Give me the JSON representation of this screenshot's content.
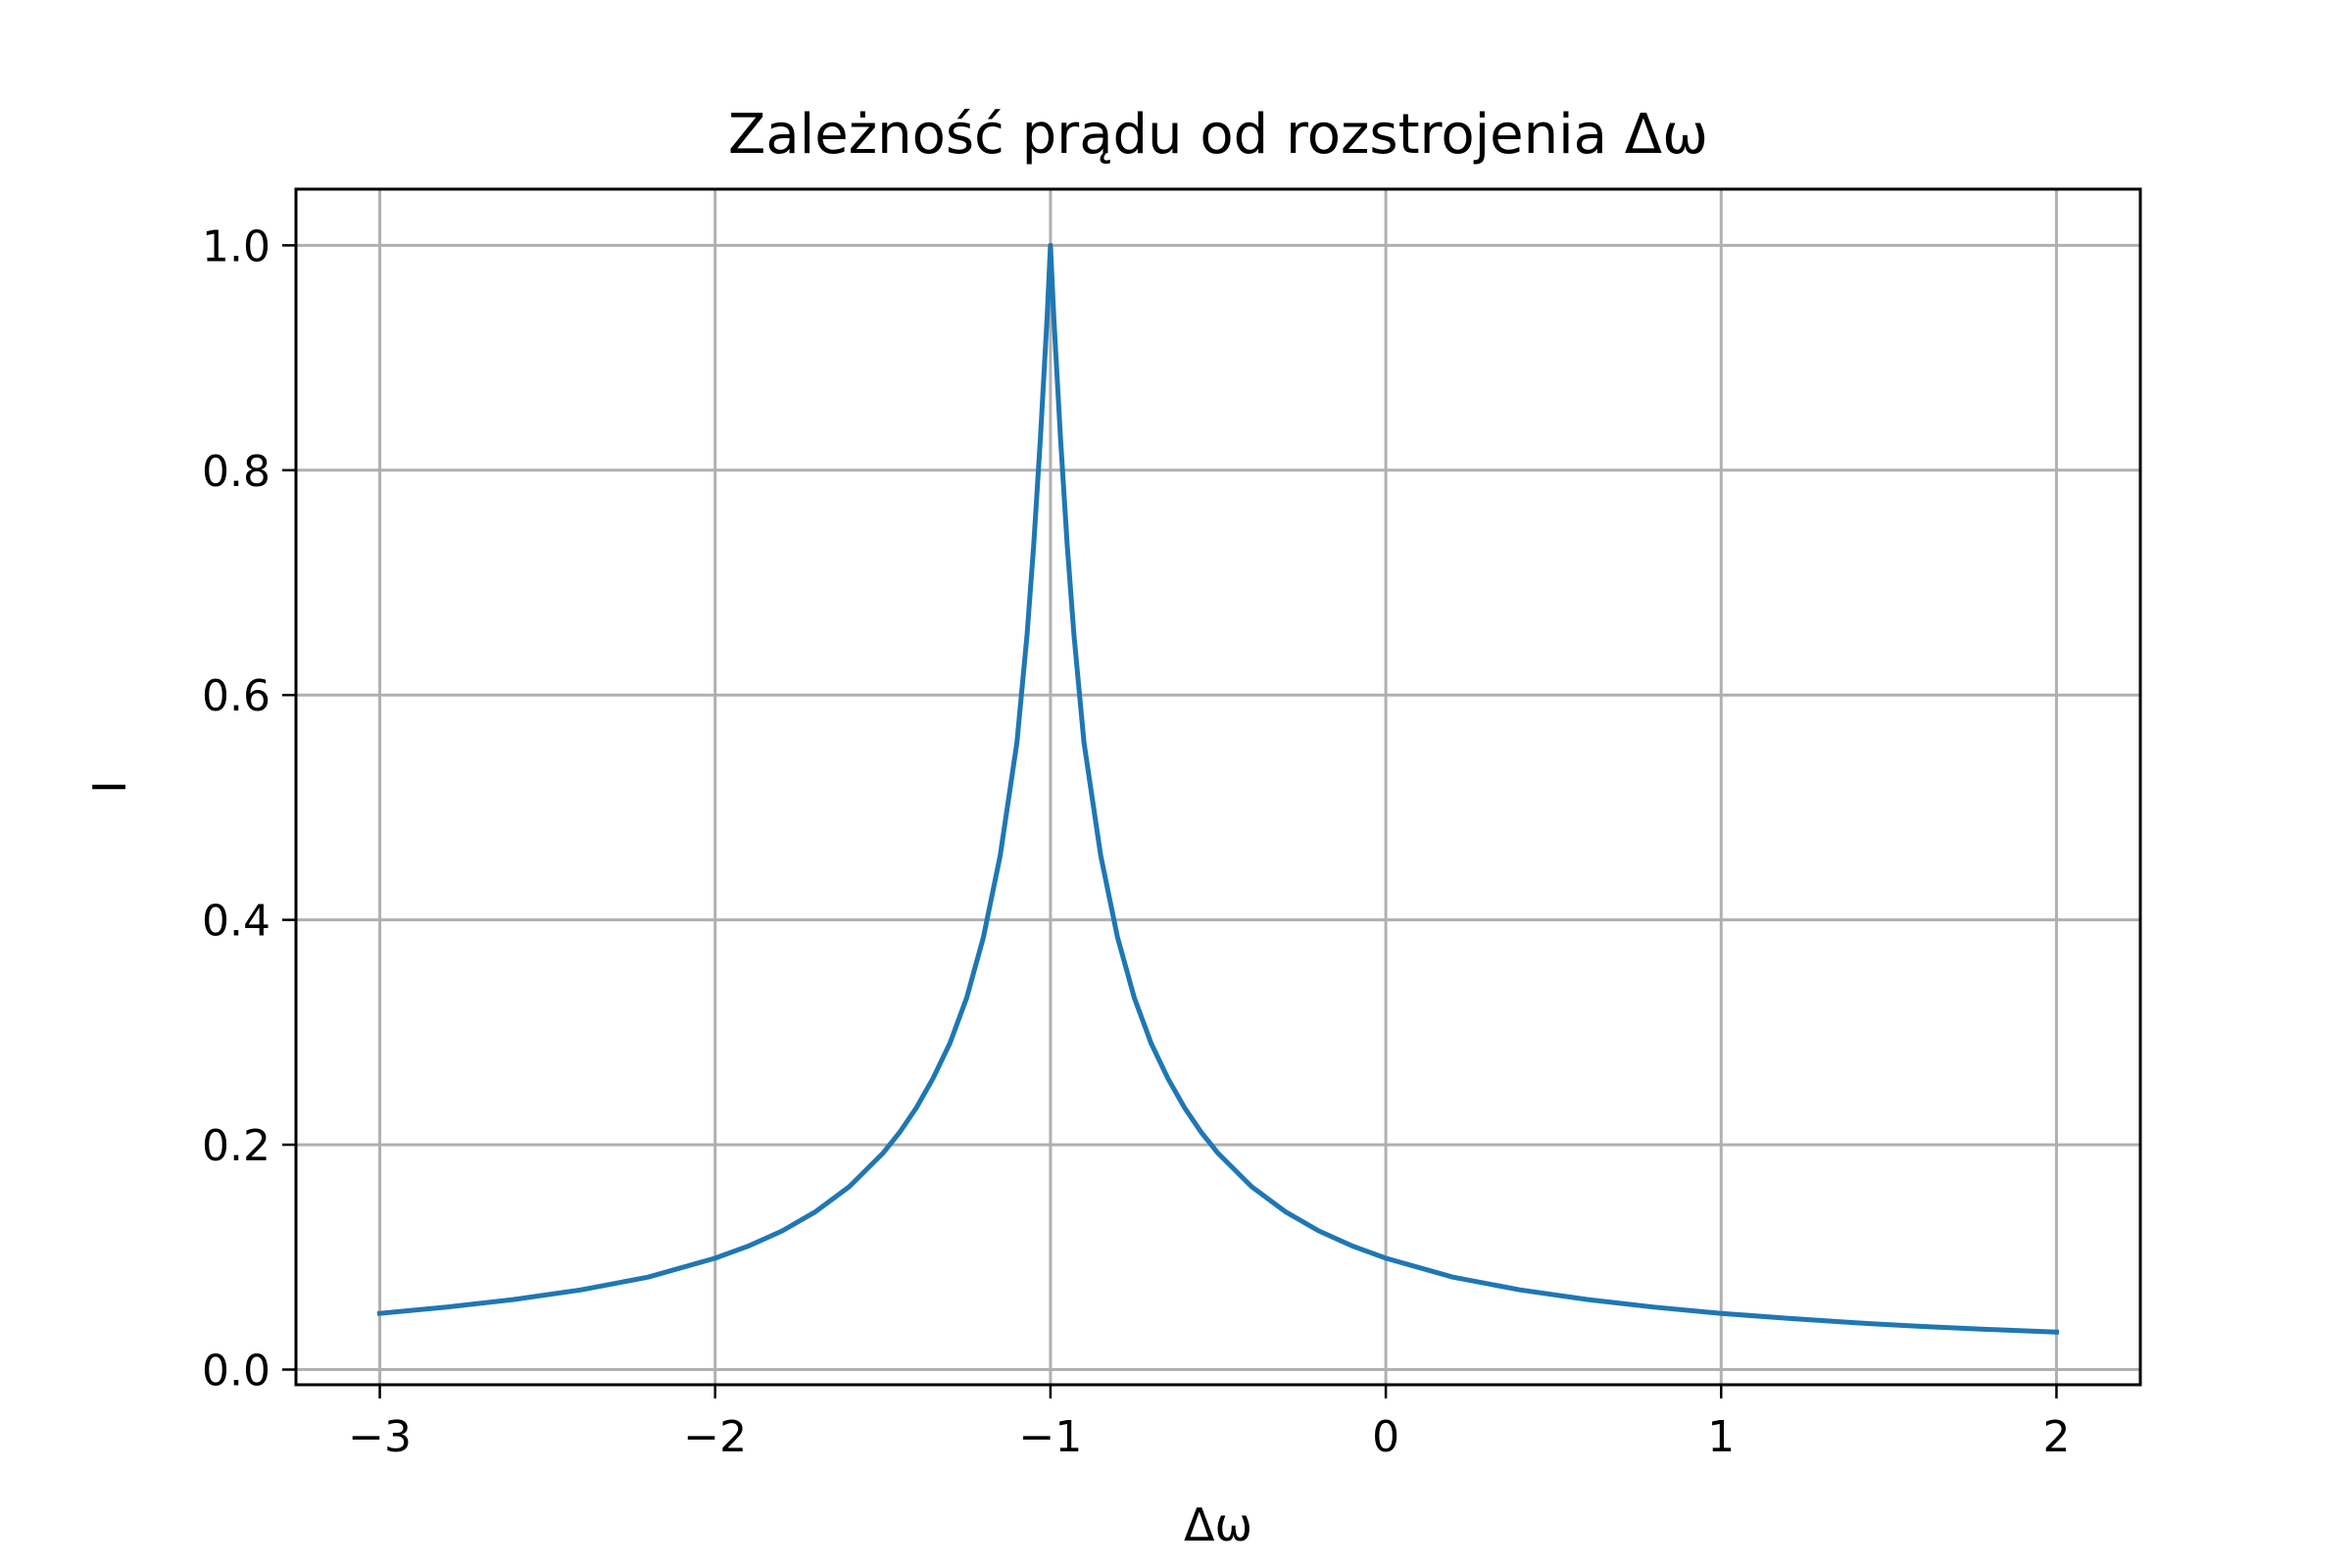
{
  "chart_data": {
    "type": "line",
    "title": "Zależność prądu od rozstrojenia Δω",
    "xlabel": "Δω",
    "ylabel": "I",
    "xlim": [
      -3.25,
      2.25
    ],
    "ylim": [
      -0.0135,
      1.05
    ],
    "xticks": [
      -3,
      -2,
      -1,
      0,
      1,
      2
    ],
    "xtick_labels": [
      "−3",
      "−2",
      "−1",
      "0",
      "1",
      "2"
    ],
    "yticks": [
      0.0,
      0.2,
      0.4,
      0.6,
      0.8,
      1.0
    ],
    "ytick_labels": [
      "0.0",
      "0.2",
      "0.4",
      "0.6",
      "0.8",
      "1.0"
    ],
    "grid": true,
    "legend": "none",
    "series": [
      {
        "color": "#1f77b4",
        "x": [
          -3.0,
          -2.8,
          -2.6,
          -2.4,
          -2.2,
          -2.0,
          -1.9,
          -1.8,
          -1.7,
          -1.6,
          -1.5,
          -1.45,
          -1.4,
          -1.35,
          -1.3,
          -1.25,
          -1.2,
          -1.15,
          -1.1,
          -1.07,
          -1.05,
          -1.03,
          -1.01,
          -1.0,
          -0.99,
          -0.97,
          -0.95,
          -0.93,
          -0.9,
          -0.85,
          -0.8,
          -0.75,
          -0.7,
          -0.65,
          -0.6,
          -0.55,
          -0.5,
          -0.4,
          -0.3,
          -0.2,
          -0.1,
          0.0,
          0.2,
          0.4,
          0.6,
          0.8,
          1.0,
          1.2,
          1.4,
          1.6,
          1.8,
          2.0
        ],
        "y": [
          0.05,
          0.0555,
          0.0623,
          0.0709,
          0.0822,
          0.099,
          0.1099,
          0.1234,
          0.1405,
          0.1627,
          0.1923,
          0.2109,
          0.2328,
          0.2591,
          0.2903,
          0.3306,
          0.3846,
          0.4571,
          0.5578,
          0.6534,
          0.7334,
          0.8279,
          0.9363,
          1.0,
          0.9363,
          0.8279,
          0.7334,
          0.6534,
          0.5578,
          0.4571,
          0.3846,
          0.3306,
          0.2903,
          0.2591,
          0.2328,
          0.2109,
          0.1923,
          0.1627,
          0.1405,
          0.1234,
          0.1099,
          0.099,
          0.0822,
          0.0709,
          0.0623,
          0.0555,
          0.05,
          0.0455,
          0.0416,
          0.0384,
          0.0357,
          0.0333
        ]
      }
    ]
  }
}
